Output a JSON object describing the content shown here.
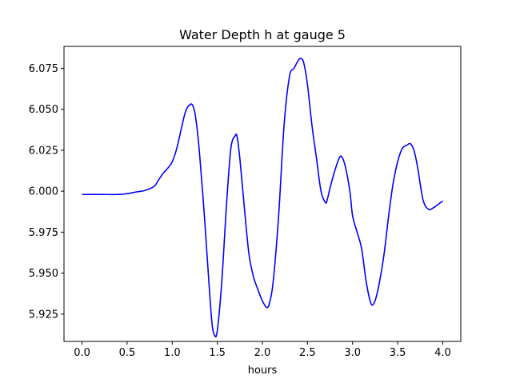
{
  "chart_data": {
    "type": "line",
    "title": "Water Depth h at gauge 5",
    "xlabel": "hours",
    "ylabel": "",
    "xlim": [
      -0.2,
      4.2
    ],
    "ylim": [
      5.9083,
      6.0884
    ],
    "xticks": [
      0.0,
      0.5,
      1.0,
      1.5,
      2.0,
      2.5,
      3.0,
      3.5,
      4.0
    ],
    "xtick_labels": [
      "0.0",
      "0.5",
      "1.0",
      "1.5",
      "2.0",
      "2.5",
      "3.0",
      "3.5",
      "4.0"
    ],
    "yticks": [
      5.925,
      5.95,
      5.975,
      6.0,
      6.025,
      6.05,
      6.075
    ],
    "ytick_labels": [
      "5.925",
      "5.950",
      "5.975",
      "6.000",
      "6.025",
      "6.050",
      "6.075"
    ],
    "grid": false,
    "series": [
      {
        "color": "#0000ff",
        "x": [
          0.0,
          0.2,
          0.4,
          0.5,
          0.6,
          0.7,
          0.8,
          0.85,
          0.9,
          0.95,
          1.0,
          1.05,
          1.1,
          1.15,
          1.2,
          1.23,
          1.26,
          1.3,
          1.35,
          1.4,
          1.44,
          1.47,
          1.5,
          1.55,
          1.6,
          1.65,
          1.7,
          1.72,
          1.75,
          1.8,
          1.85,
          1.9,
          1.95,
          2.0,
          2.05,
          2.08,
          2.12,
          2.18,
          2.24,
          2.3,
          2.35,
          2.4,
          2.43,
          2.46,
          2.5,
          2.55,
          2.6,
          2.65,
          2.7,
          2.72,
          2.75,
          2.8,
          2.85,
          2.88,
          2.92,
          2.97,
          3.0,
          3.05,
          3.1,
          3.15,
          3.2,
          3.23,
          3.26,
          3.3,
          3.35,
          3.4,
          3.45,
          3.5,
          3.55,
          3.6,
          3.64,
          3.68,
          3.72,
          3.78,
          3.84,
          3.9,
          3.95,
          4.0
        ],
        "y": [
          5.998,
          5.998,
          5.998,
          5.9985,
          5.9995,
          6.0005,
          6.003,
          6.007,
          6.011,
          6.014,
          6.018,
          6.026,
          6.038,
          6.049,
          6.053,
          6.052,
          6.045,
          6.025,
          5.99,
          5.95,
          5.92,
          5.912,
          5.915,
          5.945,
          5.99,
          6.026,
          6.034,
          6.033,
          6.02,
          5.99,
          5.962,
          5.948,
          5.94,
          5.933,
          5.929,
          5.932,
          5.945,
          5.985,
          6.04,
          6.07,
          6.075,
          6.08,
          6.081,
          6.078,
          6.065,
          6.04,
          6.02,
          6.0,
          5.993,
          5.995,
          6.002,
          6.012,
          6.02,
          6.021,
          6.015,
          6.0,
          5.985,
          5.975,
          5.965,
          5.945,
          5.932,
          5.931,
          5.935,
          5.945,
          5.962,
          5.985,
          6.005,
          6.018,
          6.026,
          6.028,
          6.029,
          6.025,
          6.015,
          5.995,
          5.989,
          5.99,
          5.992,
          5.994
        ]
      }
    ]
  }
}
